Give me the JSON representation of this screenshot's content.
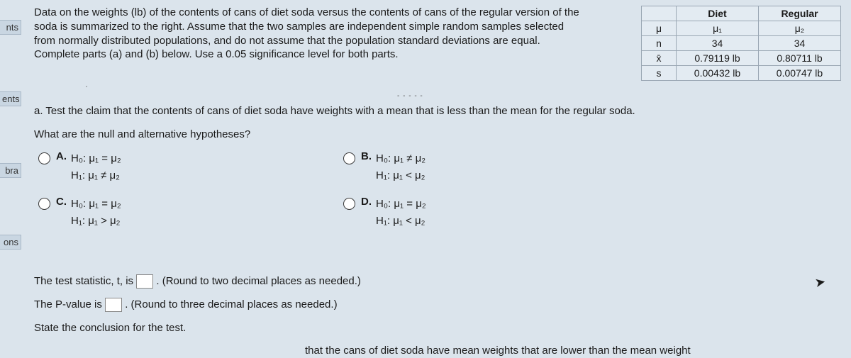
{
  "left_tabs": [
    "nts",
    "ents",
    "bra",
    "ons"
  ],
  "problem_text": "Data on the weights (lb) of the contents of cans of diet soda versus the contents of cans of the regular version of the soda is summarized to the right. Assume that the two samples are independent simple random samples selected from normally distributed populations, and do not assume that the population standard deviations are equal. Complete parts (a) and (b) below. Use a 0.05 significance level for both parts.",
  "table": {
    "headers": [
      "",
      "Diet",
      "Regular"
    ],
    "rows": [
      [
        "μ",
        "μ₁",
        "μ₂"
      ],
      [
        "n",
        "34",
        "34"
      ],
      [
        "x̄",
        "0.79119 lb",
        "0.80711 lb"
      ],
      [
        "s",
        "0.00432 lb",
        "0.00747 lb"
      ]
    ]
  },
  "part_a_intro": "a. Test the claim that the contents of cans of diet soda have weights with a mean that is less than the mean for the regular soda.",
  "hypo_question": "What are the null and alternative hypotheses?",
  "options": {
    "A": {
      "h0": "H₀: μ₁ = μ₂",
      "h1": "H₁: μ₁ ≠ μ₂"
    },
    "B": {
      "h0": "H₀: μ₁ ≠ μ₂",
      "h1": "H₁: μ₁ < μ₂"
    },
    "C": {
      "h0": "H₀: μ₁ = μ₂",
      "h1": "H₁: μ₁ > μ₂"
    },
    "D": {
      "h0": "H₀: μ₁ = μ₂",
      "h1": "H₁: μ₁ < μ₂"
    }
  },
  "tstat_line_pre": "The test statistic, t, is ",
  "tstat_line_post": ". (Round to two decimal places as needed.)",
  "pval_line_pre": "The P-value is ",
  "pval_line_post": ". (Round to three decimal places as needed.)",
  "conclusion_line": "State the conclusion for the test.",
  "bottom_cut": "that the cans of diet soda have mean weights that are lower than the mean weight",
  "dots": "- - - - -",
  "tick_mark": "ˏ",
  "colors": {
    "page_bg": "#dbe4ec",
    "table_border": "#9aa7b4",
    "table_bg": "#e3ebf2",
    "text": "#1a1a1a"
  }
}
